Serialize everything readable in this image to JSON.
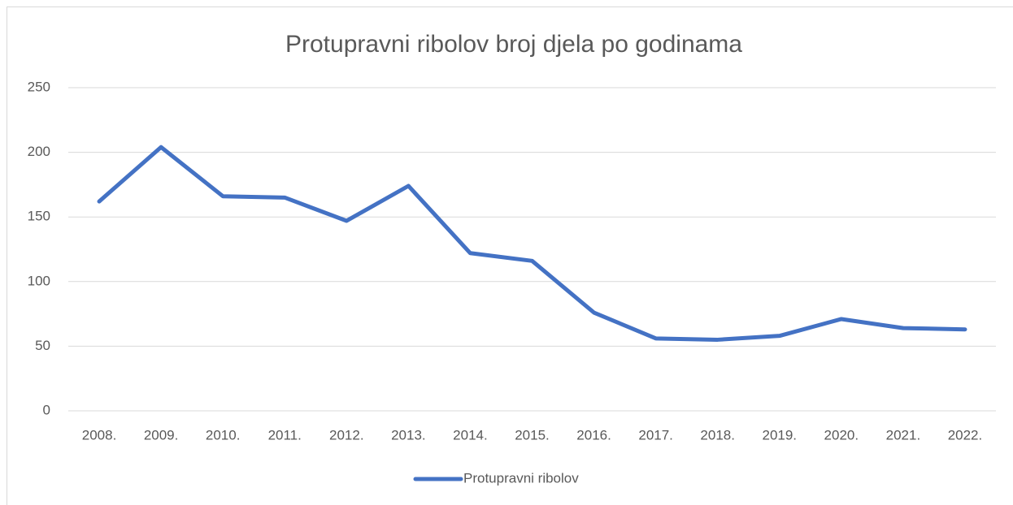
{
  "chart_data": {
    "type": "line",
    "title": "Protupravni ribolov broj djela po godinama",
    "categories": [
      "2008.",
      "2009.",
      "2010.",
      "2011.",
      "2012.",
      "2013.",
      "2014.",
      "2015.",
      "2016.",
      "2017.",
      "2018.",
      "2019.",
      "2020.",
      "2021.",
      "2022."
    ],
    "series": [
      {
        "name": "Protupravni ribolov",
        "color": "#4472c4",
        "values": [
          162,
          204,
          166,
          165,
          147,
          174,
          122,
          116,
          76,
          56,
          55,
          58,
          71,
          64,
          63
        ]
      }
    ],
    "ylim": [
      0,
      250
    ],
    "yticks": [
      0,
      50,
      100,
      150,
      200,
      250
    ],
    "grid": true,
    "legend": "bottom"
  }
}
